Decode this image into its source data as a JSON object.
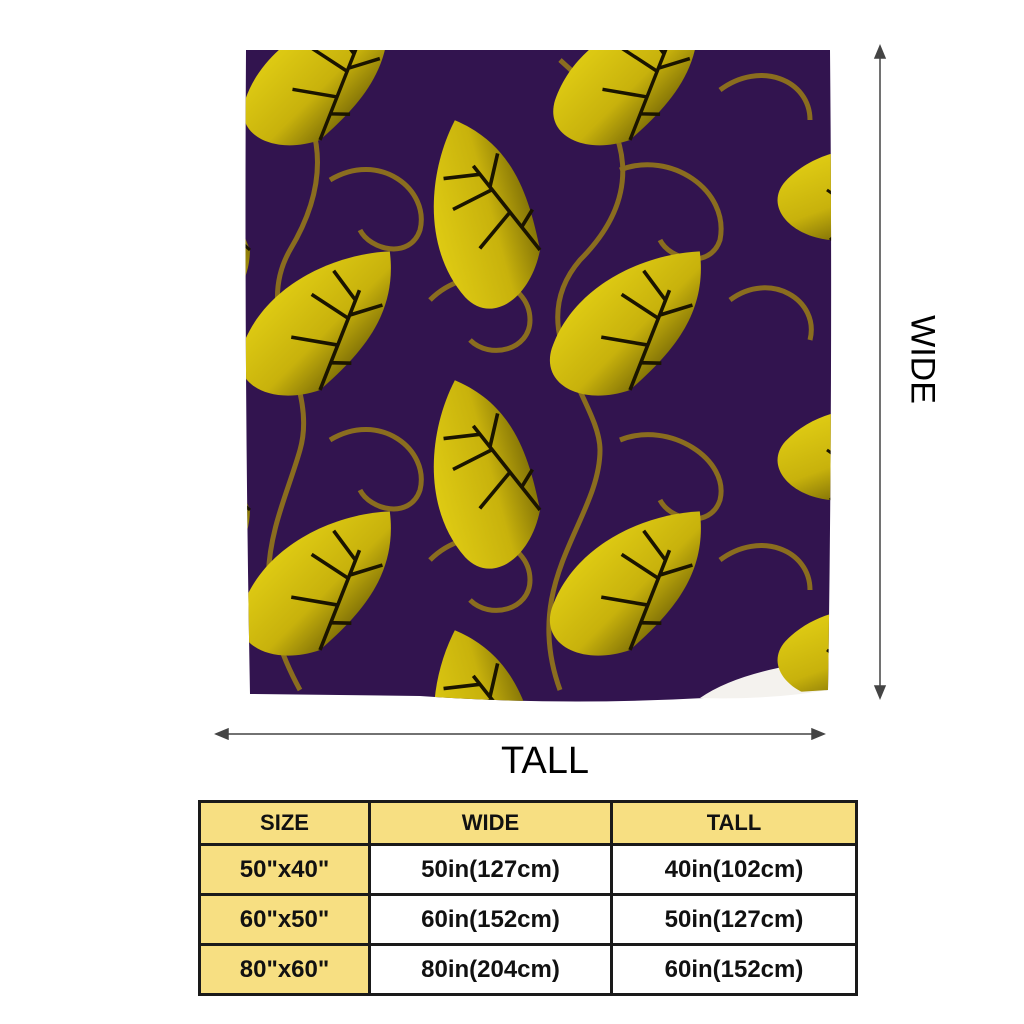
{
  "labels": {
    "wide": "WIDE",
    "tall": "TALL"
  },
  "colors": {
    "blanket": "#32144f",
    "leaf": "#d8c410",
    "vine": "#8a6d1f",
    "table_header": "#f7df82"
  },
  "table": {
    "headers": [
      "SIZE",
      "WIDE",
      "TALL"
    ],
    "rows": [
      {
        "size": "50\"x40\"",
        "wide": "50in(127cm)",
        "tall": "40in(102cm)"
      },
      {
        "size": "60\"x50\"",
        "wide": "60in(152cm)",
        "tall": "50in(127cm)"
      },
      {
        "size": "80\"x60\"",
        "wide": "80in(204cm)",
        "tall": "60in(152cm)"
      }
    ]
  }
}
